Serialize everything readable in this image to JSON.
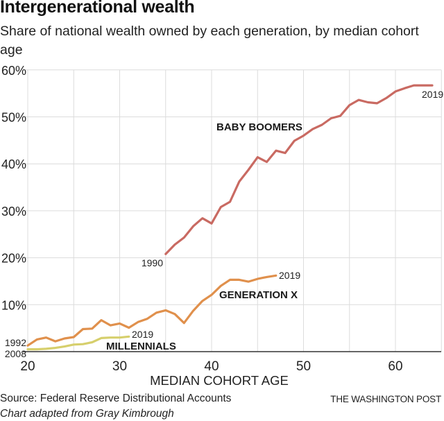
{
  "title": "Intergenerational wealth",
  "subtitle": "Share of national wealth owned by each generation, by median cohort age",
  "source": "Source: Federal Reserve Distributional Accounts",
  "credit": "Chart adapted from Gray Kimbrough",
  "brand": "THE WASHINGTON POST",
  "chart_data": {
    "type": "line",
    "title": "Intergenerational wealth",
    "subtitle": "Share of national wealth owned by each generation, by median cohort age",
    "xlabel": "MEDIAN COHORT AGE",
    "ylabel": "",
    "xlim": [
      20,
      65
    ],
    "ylim": [
      0,
      60
    ],
    "x_ticks": [
      20,
      30,
      40,
      50,
      60
    ],
    "x_tick_labels": [
      "20",
      "30",
      "40",
      "50",
      "60"
    ],
    "y_ticks": [
      10,
      20,
      30,
      40,
      50,
      60
    ],
    "y_tick_labels": [
      "10%",
      "20%",
      "30%",
      "40%",
      "50%",
      "60%"
    ],
    "grid": true,
    "legend": "none (direct labels)",
    "series": [
      {
        "name": "BABY BOOMERS",
        "color": "#c96a62",
        "start_label": "1990",
        "end_label": "2019",
        "x": [
          35,
          36,
          37,
          38,
          39,
          40,
          41,
          42,
          43,
          44,
          45,
          46,
          47,
          48,
          49,
          50,
          51,
          52,
          53,
          54,
          55,
          56,
          57,
          58,
          59,
          60,
          61,
          62,
          63,
          64
        ],
        "values": [
          20.8,
          22.8,
          24.3,
          26.7,
          28.4,
          27.3,
          30.8,
          31.9,
          36.2,
          38.7,
          41.4,
          40.4,
          42.8,
          42.3,
          44.9,
          46.0,
          47.4,
          48.3,
          49.7,
          50.2,
          52.5,
          53.6,
          53.1,
          52.9,
          54.0,
          55.4,
          56.1,
          56.7,
          56.7,
          56.7
        ]
      },
      {
        "name": "GENERATION X",
        "color": "#e0904c",
        "start_label": "1992",
        "end_label": "2019",
        "x": [
          20,
          21,
          22,
          23,
          24,
          25,
          26,
          27,
          28,
          29,
          30,
          31,
          32,
          33,
          34,
          35,
          36,
          37,
          38,
          39,
          40,
          41,
          42,
          43,
          44,
          45,
          46,
          47
        ],
        "values": [
          1.3,
          2.6,
          3.0,
          2.2,
          2.8,
          3.1,
          4.8,
          4.9,
          6.7,
          5.6,
          6.0,
          5.1,
          6.3,
          7.0,
          8.3,
          8.8,
          8.0,
          6.1,
          8.7,
          10.8,
          12.1,
          14.0,
          15.3,
          15.3,
          14.9,
          15.5,
          15.9,
          16.2
        ]
      },
      {
        "name": "MILLENNIALS",
        "color": "#d6cf6c",
        "start_label": "2008",
        "end_label": "2019",
        "x": [
          20,
          21,
          22,
          23,
          24,
          25,
          26,
          27,
          28,
          29,
          30,
          31
        ],
        "values": [
          0.5,
          0.5,
          0.6,
          0.8,
          1.1,
          1.5,
          1.6,
          2.0,
          2.9,
          3.0,
          3.0,
          3.2
        ]
      }
    ]
  }
}
